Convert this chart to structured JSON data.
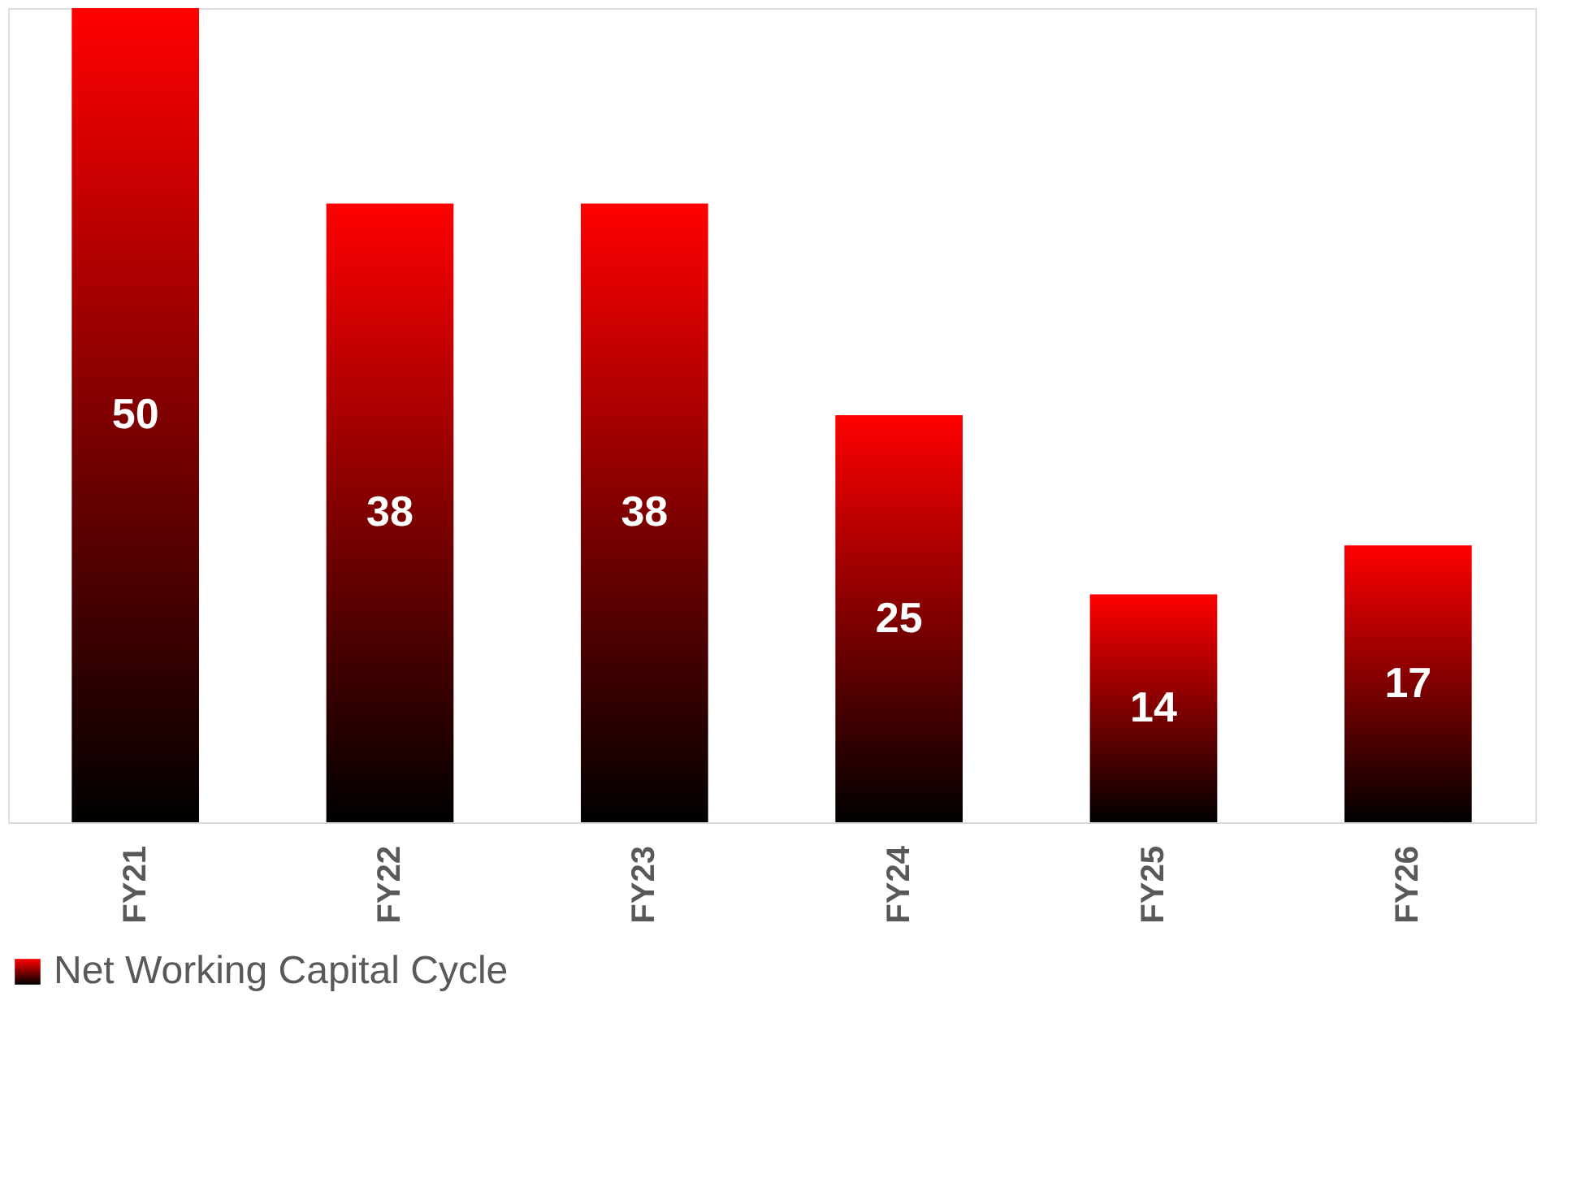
{
  "chart_data": {
    "type": "bar",
    "categories": [
      "FY21",
      "FY22",
      "FY23",
      "FY24",
      "FY25",
      "FY26"
    ],
    "series": [
      {
        "name": "Net Working Capital Cycle",
        "color": "#ff0000",
        "values": [
          50,
          38,
          38,
          25,
          14,
          17
        ]
      }
    ],
    "data_labels": true,
    "legend": "bottom",
    "grid": false
  }
}
